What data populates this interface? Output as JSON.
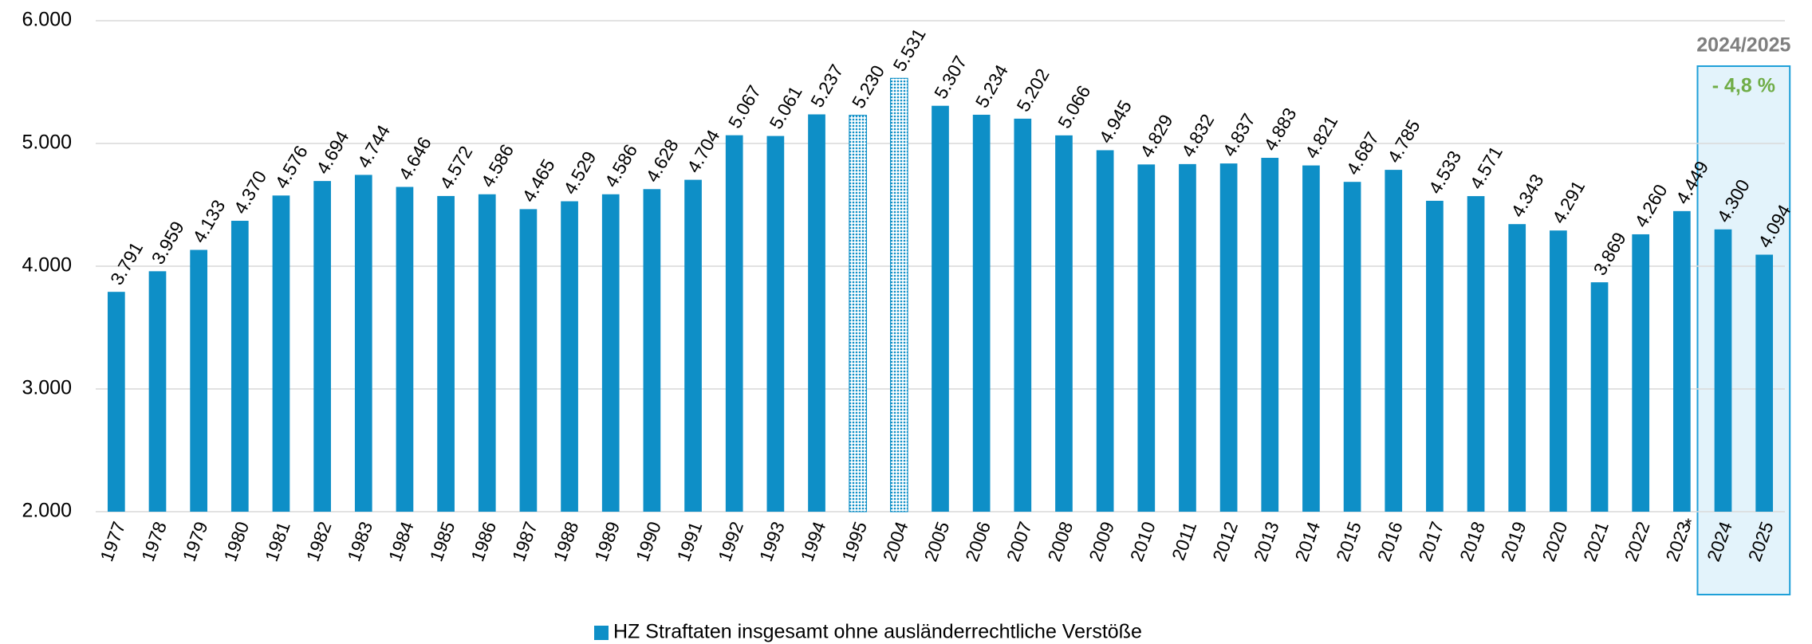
{
  "chart_data": {
    "type": "bar",
    "categories": [
      "1977",
      "1978",
      "1979",
      "1980",
      "1981",
      "1982",
      "1983",
      "1984",
      "1985",
      "1986",
      "1987",
      "1988",
      "1989",
      "1990",
      "1991",
      "1992",
      "1993",
      "1994",
      "1995",
      "2004",
      "2005",
      "2006",
      "2007",
      "2008",
      "2009",
      "2010",
      "2011",
      "2012",
      "2013",
      "2014",
      "2015",
      "2016",
      "2017",
      "2018",
      "2019",
      "2020",
      "2021",
      "2022",
      "2023",
      "2024",
      "2025"
    ],
    "series": [
      {
        "name": "HZ Straftaten insgesamt ohne ausländerrechtliche Verstöße",
        "color": "#0e8fc7",
        "values": [
          3791,
          3959,
          4133,
          4370,
          4576,
          4694,
          4744,
          4646,
          4572,
          4586,
          4465,
          4529,
          4586,
          4628,
          4704,
          5067,
          5061,
          5237,
          5230,
          5531,
          5307,
          5234,
          5202,
          5066,
          4945,
          4829,
          4832,
          4837,
          4883,
          4821,
          4687,
          4785,
          4533,
          4571,
          4343,
          4291,
          3869,
          4260,
          4449,
          4300,
          4094
        ],
        "value_labels": [
          "3.791",
          "3.959",
          "4.133",
          "4.370",
          "4.576",
          "4.694",
          "4.744",
          "4.646",
          "4.572",
          "4.586",
          "4.465",
          "4.529",
          "4.586",
          "4.628",
          "4.704",
          "5.067",
          "5.061",
          "5.237",
          "5.230",
          "5.531",
          "5.307",
          "5.234",
          "5.202",
          "5.066",
          "4.945",
          "4.829",
          "4.832",
          "4.837",
          "4.883",
          "4.821",
          "4.687",
          "4.785",
          "4.533",
          "4.571",
          "4.343",
          "4.291",
          "3.869",
          "4.260",
          "4.449",
          "4.300",
          "4.094"
        ]
      }
    ],
    "dotted_bars": [
      18,
      19
    ],
    "ylim": [
      2000,
      6000
    ],
    "yticks": [
      {
        "value": 2000,
        "label": "2.000"
      },
      {
        "value": 3000,
        "label": "3.000"
      },
      {
        "value": 4000,
        "label": "4.000"
      },
      {
        "value": 5000,
        "label": "5.000"
      },
      {
        "value": 6000,
        "label": "6.000"
      }
    ],
    "grid": true,
    "legend": "bottom",
    "annotations": {
      "footnote_mark": "*",
      "highlight_title": "2024/2025",
      "highlight_change": "- 4,8 %"
    }
  }
}
